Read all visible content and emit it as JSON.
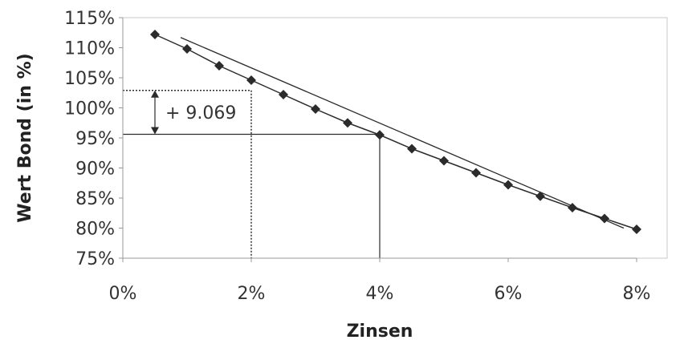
{
  "chart_data": {
    "type": "scatter",
    "xlabel": "Zinsen",
    "ylabel": "Wert Bond (in %)",
    "xlim": [
      0,
      8
    ],
    "ylim": [
      75,
      115
    ],
    "x_ticks": [
      "0%",
      "2%",
      "4%",
      "6%",
      "8%"
    ],
    "y_ticks": [
      "75%",
      "80%",
      "85%",
      "90%",
      "95%",
      "100%",
      "105%",
      "110%",
      "115%"
    ],
    "grid": false,
    "series": [
      {
        "style": "line-with-diamond-markers",
        "x": [
          0.5,
          1.0,
          1.5,
          2.0,
          2.5,
          3.0,
          3.5,
          4.0,
          4.5,
          5.0,
          5.5,
          6.0,
          6.5,
          7.0,
          7.5,
          8.0
        ],
        "y": [
          112.2,
          109.8,
          107.0,
          104.6,
          102.2,
          99.8,
          97.5,
          95.5,
          93.2,
          91.2,
          89.2,
          87.2,
          85.3,
          83.4,
          81.6,
          79.8
        ]
      },
      {
        "style": "tangent-line",
        "x": [
          0.9,
          7.8
        ],
        "y": [
          111.7,
          80.0
        ]
      }
    ],
    "annotations": {
      "tangent_point": {
        "x": 4.0,
        "y": 95.6
      },
      "reference_point": {
        "x": 2.0,
        "y": 102.9
      },
      "difference_label": "+ 9.069"
    },
    "colors": {
      "series": "#2b2b2b",
      "axis": "#999999",
      "plot_border": "#c8c8c8",
      "text": "#333333"
    }
  }
}
